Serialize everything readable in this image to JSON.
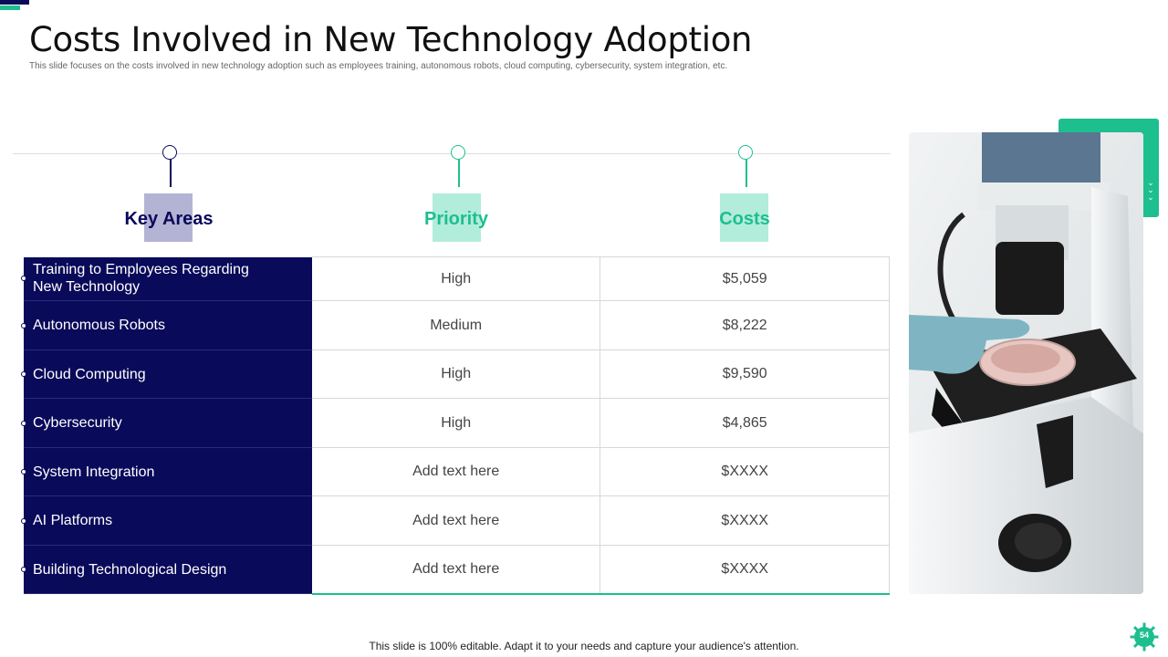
{
  "slide": {
    "title": "Costs Involved in New Technology Adoption",
    "subtitle": "This slide focuses on the costs involved in new technology adoption such as employees training, autonomous robots, cloud computing,  cybersecurity, system integration, etc.",
    "footer": "This slide is 100% editable. Adapt it to your needs and capture your audience's attention.",
    "page_number": "54"
  },
  "colors": {
    "navy": "#0a0a5a",
    "teal": "#1dbf8f",
    "lavender": "#b3b3d4",
    "mint": "#b2ecdb"
  },
  "table": {
    "headers": [
      "Key Areas",
      "Priority",
      "Costs"
    ],
    "rows": [
      {
        "area": "Training to Employees Regarding New Technology",
        "priority": "High",
        "cost": "$5,059"
      },
      {
        "area": "Autonomous Robots",
        "priority": "Medium",
        "cost": "$8,222"
      },
      {
        "area": "Cloud Computing",
        "priority": "High",
        "cost": "$9,590"
      },
      {
        "area": "Cybersecurity",
        "priority": "High",
        "cost": "$4,865"
      },
      {
        "area": "System Integration",
        "priority": "Add text here",
        "cost": "$XXXX"
      },
      {
        "area": "AI Platforms",
        "priority": "Add text here",
        "cost": "$XXXX"
      },
      {
        "area": "Building Technological Design",
        "priority": "Add text here",
        "cost": "$XXXX"
      }
    ]
  },
  "icons": {
    "photo": "microscope-photo",
    "page_badge": "gear-badge-icon",
    "accent": "chevrons-icon"
  }
}
